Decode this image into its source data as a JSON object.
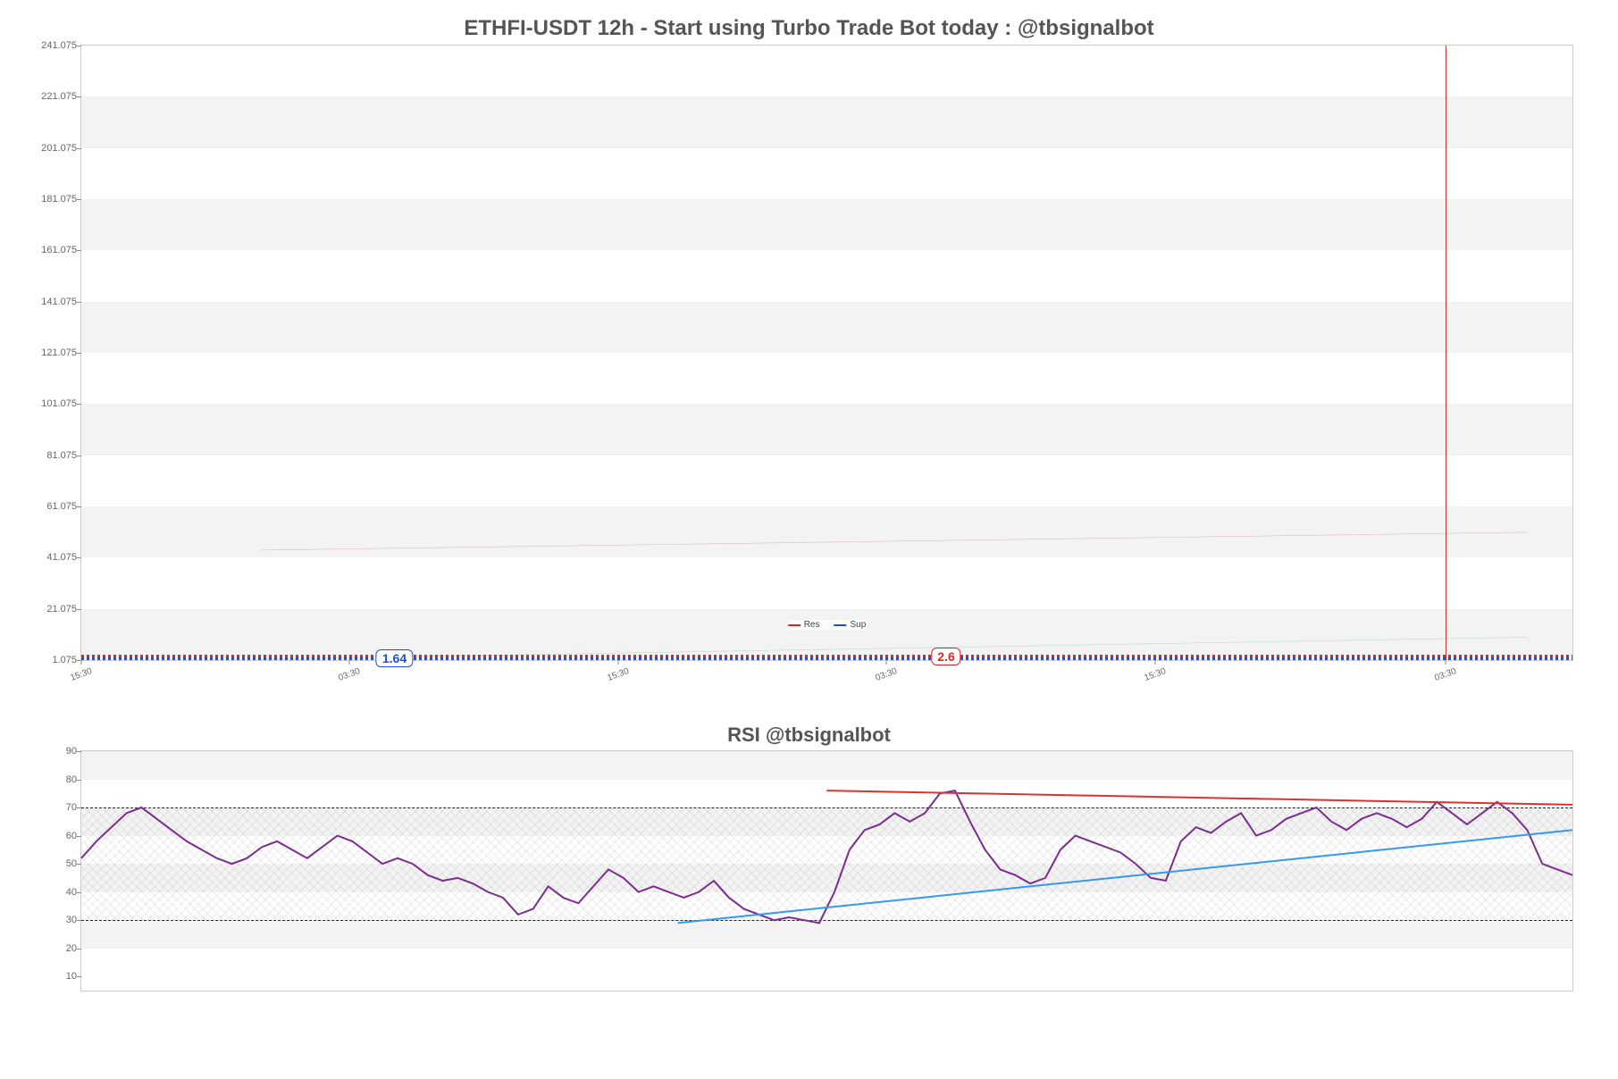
{
  "price_chart": {
    "type": "line",
    "title": "ETHFI-USDT 12h - Start using Turbo Trade Bot today : @tbsignalbot",
    "title_fontsize": 24,
    "title_color": "#555555",
    "background_color": "#ffffff",
    "band_color": "#f3f3f3",
    "border_color": "#cccccc",
    "ylim": [
      1.075,
      241.075
    ],
    "ytick_step": 20,
    "yticks": [
      1.075,
      21.075,
      41.075,
      61.075,
      81.075,
      101.075,
      121.075,
      141.075,
      161.075,
      181.075,
      201.075,
      221.075,
      241.075
    ],
    "ytick_labels": [
      "1.075",
      "21.075",
      "41.075",
      "61.075",
      "81.075",
      "101.075",
      "121.075",
      "141.075",
      "161.075",
      "181.075",
      "201.075",
      "221.075",
      "241.075"
    ],
    "ytick_fontsize": 11,
    "tick_color": "#666666",
    "xticks_pct": [
      0,
      18,
      36,
      54,
      72,
      91.5
    ],
    "xtick_labels": [
      "15:30",
      "03:30",
      "15:30",
      "03:30",
      "15:30",
      "03:30"
    ],
    "xtick_fontsize": 10,
    "legend": {
      "position_top_pct": 93.5,
      "items": [
        {
          "label": "Res",
          "color": "#d62828"
        },
        {
          "label": "Sup",
          "color": "#1d4ed8"
        }
      ],
      "fontsize": 10
    },
    "vertical_cursor": {
      "x_pct": 91.5,
      "color": "#c0392b",
      "width": 1
    },
    "markers": [
      {
        "text": "1.64",
        "x_pct": 21,
        "y_val": 1.7,
        "text_color": "#1d4ed8",
        "border_color": "#1d4ed8"
      },
      {
        "text": "2.6",
        "x_pct": 58,
        "y_val": 2.6,
        "text_color": "#d62828",
        "border_color": "#d62828"
      }
    ],
    "trend_lines": [
      {
        "color": "#7b1e1e",
        "width": 1,
        "x1_pct": 12,
        "y1_val": 44,
        "x2_pct": 97,
        "y2_val": 51
      },
      {
        "color": "#1f8a4c",
        "width": 1,
        "x1_pct": 12,
        "y1_val": 1.4,
        "x2_pct": 97,
        "y2_val": 10
      }
    ],
    "data_strip": {
      "y_val": 2.0,
      "res_color": "#d62828",
      "sup_color": "#1d4ed8",
      "thickness_px": 3
    }
  },
  "rsi_chart": {
    "type": "line",
    "title": "RSI @tbsignalbot",
    "title_fontsize": 22,
    "title_color": "#555555",
    "background_color": "#ffffff",
    "band_color": "#f3f3f3",
    "border_color": "#cccccc",
    "ylim": [
      5,
      90
    ],
    "yticks": [
      10,
      20,
      30,
      40,
      50,
      60,
      70,
      80,
      90
    ],
    "ytick_labels": [
      "10",
      "20",
      "30",
      "40",
      "50",
      "60",
      "70",
      "80",
      "90"
    ],
    "ytick_fontsize": 11,
    "tick_color": "#666666",
    "threshold_lines": [
      {
        "y": 70,
        "color": "#222222",
        "dash": true
      },
      {
        "y": 30,
        "color": "#222222",
        "dash": true
      }
    ],
    "hatch_band": {
      "y_low": 30,
      "y_high": 70
    },
    "series": {
      "color": "#7b2d8e",
      "width": 2,
      "values": [
        52,
        58,
        63,
        68,
        70,
        66,
        62,
        58,
        55,
        52,
        50,
        52,
        56,
        58,
        55,
        52,
        56,
        60,
        58,
        54,
        50,
        52,
        50,
        46,
        44,
        45,
        43,
        40,
        38,
        32,
        34,
        42,
        38,
        36,
        42,
        48,
        45,
        40,
        42,
        40,
        38,
        40,
        44,
        38,
        34,
        32,
        30,
        31,
        30,
        29,
        40,
        55,
        62,
        64,
        68,
        65,
        68,
        75,
        76,
        65,
        55,
        48,
        46,
        43,
        45,
        55,
        60,
        58,
        56,
        54,
        50,
        45,
        44,
        58,
        63,
        61,
        65,
        68,
        60,
        62,
        66,
        68,
        70,
        65,
        62,
        66,
        68,
        66,
        63,
        66,
        72,
        68,
        64,
        68,
        72,
        68,
        62,
        50,
        48,
        46
      ]
    },
    "trend_lines": [
      {
        "color": "#e03131",
        "width": 2,
        "x1_pct": 50,
        "y1_val": 76,
        "x2_pct": 100,
        "y2_val": 71
      },
      {
        "color": "#339af0",
        "width": 2,
        "x1_pct": 40,
        "y1_val": 29,
        "x2_pct": 100,
        "y2_val": 62
      }
    ]
  }
}
